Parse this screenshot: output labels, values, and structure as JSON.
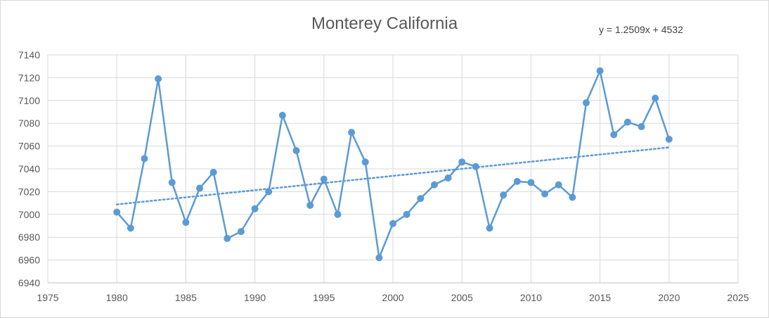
{
  "chart_data": {
    "type": "scatter",
    "title": "Monterey California",
    "xlabel": "",
    "ylabel": "",
    "xlim": [
      1975,
      2025
    ],
    "ylim": [
      6940,
      7140
    ],
    "x_ticks": [
      1975,
      1980,
      1985,
      1990,
      1995,
      2000,
      2005,
      2010,
      2015,
      2020,
      2025
    ],
    "y_ticks": [
      6940,
      6960,
      6980,
      7000,
      7020,
      7040,
      7060,
      7080,
      7100,
      7120,
      7140
    ],
    "grid": true,
    "legend": "none",
    "series": [
      {
        "color": "#5b9bd5",
        "marker": "circle",
        "line": "solid",
        "x": [
          1980,
          1981,
          1982,
          1983,
          1984,
          1985,
          1986,
          1987,
          1988,
          1989,
          1990,
          1991,
          1992,
          1993,
          1994,
          1995,
          1996,
          1997,
          1998,
          1999,
          2000,
          2001,
          2002,
          2003,
          2004,
          2005,
          2006,
          2007,
          2008,
          2009,
          2010,
          2011,
          2012,
          2013,
          2014,
          2015,
          2016,
          2017,
          2018,
          2019,
          2020
        ],
        "y": [
          7002,
          6988,
          7049,
          7119,
          7028,
          6993,
          7023,
          7037,
          6979,
          6985,
          7005,
          7020,
          7087,
          7056,
          7008,
          7031,
          7000,
          7072,
          7046,
          6962,
          6992,
          7000,
          7014,
          7026,
          7032,
          7046,
          7042,
          6988,
          7017,
          7029,
          7028,
          7018,
          7026,
          7015,
          7098,
          7126,
          7070,
          7081,
          7077,
          7102,
          7066
        ]
      }
    ],
    "trendline": {
      "type": "linear",
      "slope": 1.2509,
      "intercept": 4532,
      "x_range": [
        1980,
        2020
      ],
      "color": "#5b9bd5",
      "style": "dotted",
      "equation_label": "y = 1.2509x + 4532"
    }
  }
}
